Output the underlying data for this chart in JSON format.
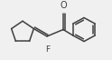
{
  "bg_color": "#f0f0f0",
  "bond_color": "#404040",
  "text_color": "#404040",
  "line_width": 1.1,
  "figsize": [
    1.24,
    0.66
  ],
  "dpi": 100,
  "O_label": "O",
  "F_label": "F"
}
